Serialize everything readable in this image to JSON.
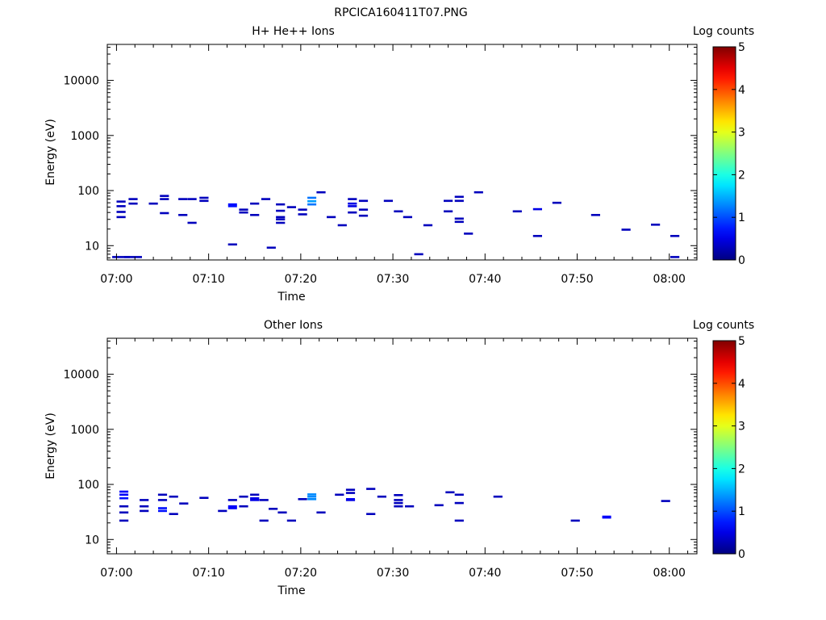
{
  "figure_title": "RPCICA160411T07.PNG",
  "chart_data": [
    {
      "type": "heatmap",
      "title": "H+ He++ Ions",
      "xlabel": "Time",
      "ylabel": "Energy (eV)",
      "yscale": "log",
      "xlim": [
        "06:59",
        "08:03"
      ],
      "ylim": [
        5.5,
        45000
      ],
      "x_ticks": [
        "07:00",
        "07:10",
        "07:20",
        "07:30",
        "07:40",
        "07:50",
        "08:00"
      ],
      "y_ticks": [
        "10",
        "100",
        "1000",
        "10000"
      ],
      "colorbar": {
        "label": "Log counts",
        "range": [
          0,
          5
        ],
        "ticks": [
          "0",
          "1",
          "2",
          "3",
          "4",
          "5"
        ]
      },
      "grid": false,
      "cells": [
        [
          "07:00.5",
          63,
          0.3
        ],
        [
          "07:00.5",
          52,
          0.3
        ],
        [
          "07:00.5",
          41,
          0.3
        ],
        [
          "07:00.5",
          33,
          0.3
        ],
        [
          "07:00.5",
          6.2,
          0.3
        ],
        [
          "07:01.8",
          70,
          0.3
        ],
        [
          "07:01.8",
          58,
          0.3
        ],
        [
          "07:01.8",
          6.2,
          0.3
        ],
        [
          "07:04.0",
          58,
          0.3
        ],
        [
          "07:05.2",
          80,
          0.3
        ],
        [
          "07:05.2",
          70,
          0.3
        ],
        [
          "07:05.2",
          39,
          0.3
        ],
        [
          "07:07.2",
          70,
          0.3
        ],
        [
          "07:07.2",
          36,
          0.3
        ],
        [
          "07:08.2",
          70,
          0.3
        ],
        [
          "07:08.2",
          26,
          0.3
        ],
        [
          "07:09.5",
          74,
          0.3
        ],
        [
          "07:09.5",
          65,
          0.3
        ],
        [
          "07:12.6",
          56,
          0.7
        ],
        [
          "07:12.6",
          52,
          0.7
        ],
        [
          "07:12.6",
          10.5,
          0.3
        ],
        [
          "07:13.8",
          45,
          0.3
        ],
        [
          "07:13.8",
          40,
          0.3
        ],
        [
          "07:15.0",
          58,
          0.3
        ],
        [
          "07:15.0",
          36,
          0.3
        ],
        [
          "07:16.2",
          70,
          0.3
        ],
        [
          "07:16.8",
          9.2,
          0.3
        ],
        [
          "07:17.8",
          56,
          0.3
        ],
        [
          "07:17.8",
          43,
          0.3
        ],
        [
          "07:17.8",
          33,
          0.3
        ],
        [
          "07:17.8",
          30,
          0.3
        ],
        [
          "07:17.8",
          26,
          0.3
        ],
        [
          "07:19.0",
          50,
          0.3
        ],
        [
          "07:20.2",
          45,
          0.3
        ],
        [
          "07:20.2",
          37,
          0.3
        ],
        [
          "07:21.2",
          74,
          1.2
        ],
        [
          "07:21.2",
          64,
          1.4
        ],
        [
          "07:21.2",
          56,
          1.2
        ],
        [
          "07:22.2",
          93,
          0.3
        ],
        [
          "07:23.3",
          33,
          0.3
        ],
        [
          "07:24.5",
          23.5,
          0.3
        ],
        [
          "07:25.6",
          70,
          0.3
        ],
        [
          "07:25.6",
          58,
          0.5
        ],
        [
          "07:25.6",
          52,
          0.5
        ],
        [
          "07:25.6",
          40,
          0.3
        ],
        [
          "07:26.8",
          65,
          0.3
        ],
        [
          "07:26.8",
          45,
          0.3
        ],
        [
          "07:26.8",
          35,
          0.3
        ],
        [
          "07:29.5",
          65,
          0.3
        ],
        [
          "07:30.6",
          42,
          0.3
        ],
        [
          "07:31.6",
          33,
          0.3
        ],
        [
          "07:32.8",
          7.0,
          0.3
        ],
        [
          "07:33.8",
          23.5,
          0.3
        ],
        [
          "07:36.0",
          65,
          0.3
        ],
        [
          "07:36.0",
          42,
          0.3
        ],
        [
          "07:37.2",
          77,
          0.3
        ],
        [
          "07:37.2",
          65,
          0.3
        ],
        [
          "07:37.2",
          31,
          0.3
        ],
        [
          "07:37.2",
          27,
          0.3
        ],
        [
          "07:38.2",
          16.5,
          0.3
        ],
        [
          "07:39.3",
          93,
          0.3
        ],
        [
          "07:43.5",
          42,
          0.3
        ],
        [
          "07:45.7",
          46,
          0.5
        ],
        [
          "07:45.7",
          15,
          0.3
        ],
        [
          "07:47.8",
          60,
          0.3
        ],
        [
          "07:52.0",
          36,
          0.3
        ],
        [
          "07:55.3",
          19.5,
          0.3
        ],
        [
          "07:58.5",
          24,
          0.3
        ],
        [
          "08:00.6",
          15,
          0.3
        ],
        [
          "08:00.6",
          6.2,
          0.3
        ]
      ]
    },
    {
      "type": "heatmap",
      "title": "Other Ions",
      "xlabel": "Time",
      "ylabel": "Energy (eV)",
      "yscale": "log",
      "xlim": [
        "06:59",
        "08:03"
      ],
      "ylim": [
        5.5,
        45000
      ],
      "x_ticks": [
        "07:00",
        "07:10",
        "07:20",
        "07:30",
        "07:40",
        "07:50",
        "08:00"
      ],
      "y_ticks": [
        "10",
        "100",
        "1000",
        "10000"
      ],
      "colorbar": {
        "label": "Log counts",
        "range": [
          0,
          5
        ],
        "ticks": [
          "0",
          "1",
          "2",
          "3",
          "4",
          "5"
        ]
      },
      "grid": false,
      "cells": [
        [
          "07:00.8",
          74,
          0.6
        ],
        [
          "07:00.8",
          65,
          0.6
        ],
        [
          "07:00.8",
          56,
          0.7
        ],
        [
          "07:00.8",
          40,
          0.3
        ],
        [
          "07:00.8",
          31,
          0.3
        ],
        [
          "07:00.8",
          22,
          0.3
        ],
        [
          "07:03.0",
          52,
          0.3
        ],
        [
          "07:03.0",
          40,
          0.3
        ],
        [
          "07:03.0",
          33,
          0.3
        ],
        [
          "07:05.0",
          65,
          0.3
        ],
        [
          "07:05.0",
          52,
          0.3
        ],
        [
          "07:05.0",
          37,
          0.7
        ],
        [
          "07:05.0",
          33,
          0.7
        ],
        [
          "07:06.2",
          60,
          0.3
        ],
        [
          "07:06.2",
          29,
          0.3
        ],
        [
          "07:07.3",
          45,
          0.3
        ],
        [
          "07:09.5",
          57,
          0.3
        ],
        [
          "07:11.5",
          33,
          0.3
        ],
        [
          "07:12.6",
          52,
          0.3
        ],
        [
          "07:12.6",
          40,
          0.6
        ],
        [
          "07:12.6",
          37,
          0.6
        ],
        [
          "07:13.8",
          60,
          0.3
        ],
        [
          "07:13.8",
          40,
          0.3
        ],
        [
          "07:15.0",
          65,
          0.3
        ],
        [
          "07:15.0",
          56,
          0.5
        ],
        [
          "07:15.0",
          52,
          0.5
        ],
        [
          "07:16.0",
          52,
          0.3
        ],
        [
          "07:16.0",
          22,
          0.3
        ],
        [
          "07:17.0",
          36,
          0.3
        ],
        [
          "07:18.0",
          31,
          0.3
        ],
        [
          "07:19.0",
          22,
          0.3
        ],
        [
          "07:20.2",
          54,
          0.3
        ],
        [
          "07:21.2",
          66,
          1.3
        ],
        [
          "07:21.2",
          60,
          1.3
        ],
        [
          "07:21.2",
          54,
          1.3
        ],
        [
          "07:22.2",
          31,
          0.3
        ],
        [
          "07:24.2",
          65,
          0.3
        ],
        [
          "07:25.4",
          80,
          0.3
        ],
        [
          "07:25.4",
          70,
          0.3
        ],
        [
          "07:25.4",
          54,
          0.6
        ],
        [
          "07:25.4",
          52,
          0.5
        ],
        [
          "07:27.6",
          83,
          0.3
        ],
        [
          "07:27.6",
          29,
          0.3
        ],
        [
          "07:28.8",
          60,
          0.3
        ],
        [
          "07:30.6",
          64,
          0.3
        ],
        [
          "07:30.6",
          52,
          0.3
        ],
        [
          "07:30.6",
          46,
          0.3
        ],
        [
          "07:30.6",
          40,
          0.3
        ],
        [
          "07:31.8",
          40,
          0.3
        ],
        [
          "07:35.0",
          42,
          0.3
        ],
        [
          "07:36.2",
          72,
          0.3
        ],
        [
          "07:37.2",
          65,
          0.3
        ],
        [
          "07:37.2",
          46,
          0.3
        ],
        [
          "07:37.2",
          22,
          0.3
        ],
        [
          "07:41.4",
          60,
          0.3
        ],
        [
          "07:49.8",
          22,
          0.3
        ],
        [
          "07:53.2",
          26,
          0.6
        ],
        [
          "07:53.2",
          25,
          0.6
        ],
        [
          "07:59.6",
          50,
          0.3
        ]
      ]
    }
  ]
}
